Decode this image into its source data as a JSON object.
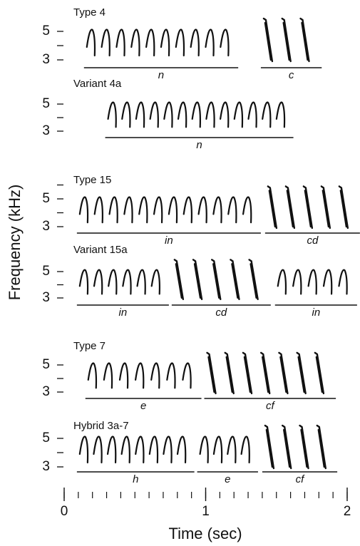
{
  "figure": {
    "y_label": "Frequency (kHz)",
    "x_label": "Time (sec)",
    "xlim": [
      0,
      2
    ],
    "xticks": [
      0,
      1,
      2
    ],
    "panels": [
      {
        "title": "Type 4",
        "yticks": [
          3,
          5
        ],
        "minor_yticks": [
          4
        ],
        "segments": [
          {
            "label": "n",
            "start": 0.14,
            "end": 1.23
          },
          {
            "label": "c",
            "start": 1.39,
            "end": 1.82
          }
        ]
      },
      {
        "title": "Variant 4a",
        "yticks": [
          3,
          5
        ],
        "minor_yticks": [
          4
        ],
        "segments": [
          {
            "label": "n",
            "start": 0.29,
            "end": 1.62
          }
        ]
      },
      {
        "title": "Type 15",
        "yticks": [
          3,
          5
        ],
        "minor_yticks": [
          4,
          6
        ],
        "segments": [
          {
            "label": "in",
            "start": 0.09,
            "end": 1.39
          },
          {
            "label": "cd",
            "start": 1.42,
            "end": 2.09
          }
        ]
      },
      {
        "title": "Variant 15a",
        "yticks": [
          3,
          5
        ],
        "minor_yticks": [
          4
        ],
        "segments": [
          {
            "label": "in",
            "start": 0.09,
            "end": 0.74
          },
          {
            "label": "cd",
            "start": 0.76,
            "end": 1.46
          },
          {
            "label": "in",
            "start": 1.49,
            "end": 2.07
          }
        ]
      },
      {
        "title": "Type 7",
        "yticks": [
          3,
          5
        ],
        "minor_yticks": [
          4
        ],
        "segments": [
          {
            "label": "e",
            "start": 0.15,
            "end": 0.97
          },
          {
            "label": "cf",
            "start": 0.99,
            "end": 1.92
          }
        ]
      },
      {
        "title": "Hybrid 3a-7",
        "yticks": [
          3,
          5
        ],
        "minor_yticks": [
          4
        ],
        "segments": [
          {
            "label": "h",
            "start": 0.09,
            "end": 0.92
          },
          {
            "label": "e",
            "start": 0.94,
            "end": 1.37
          },
          {
            "label": "cf",
            "start": 1.4,
            "end": 1.93
          }
        ]
      }
    ]
  }
}
